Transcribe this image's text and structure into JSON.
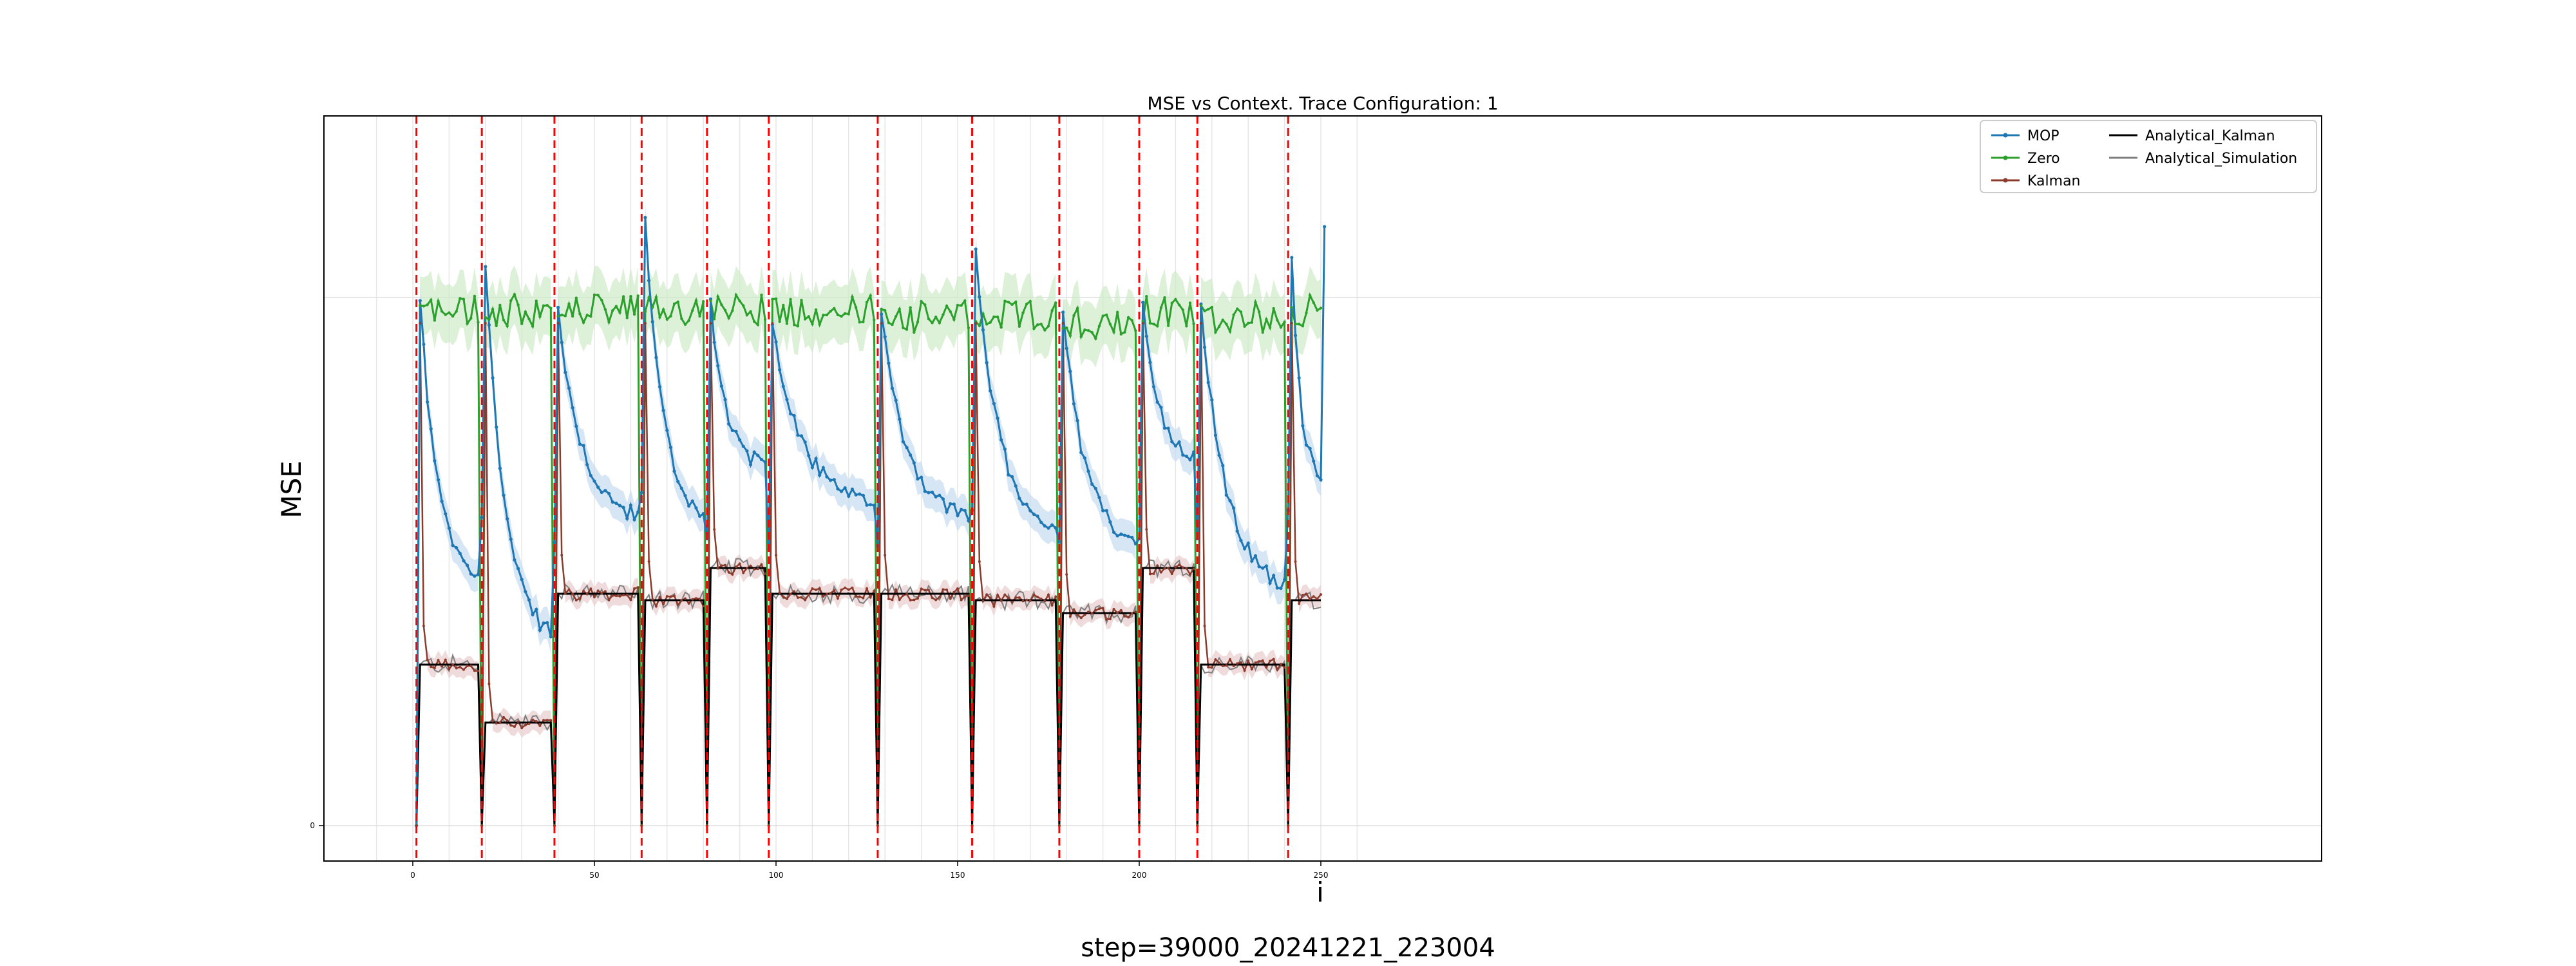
{
  "chart_data": {
    "type": "line",
    "title": "MSE vs Context. Trace Configuration: 1",
    "xlabel": "i",
    "ylabel": "MSE",
    "footer": "step=39000_20241221_223004",
    "xlim": [
      -12.5,
      262.5
    ],
    "ylim": [
      -0.05,
      1.0
    ],
    "x_ticks": [
      0,
      50,
      100,
      150,
      200,
      250
    ],
    "y_ticks": [
      0
    ],
    "grid": true,
    "legend_position": "top-right",
    "legend_columns": 2,
    "colors": {
      "MOP": "#1f77b4",
      "Zero": "#2ca02c",
      "Kalman": "#8c3a2b",
      "Analytical_Kalman": "#000000",
      "Analytical_Simulation": "#808080",
      "boundary": "#ff0000",
      "mop_band": "#c6dbef",
      "zero_band": "#cdebc8",
      "kalman_band": "#e8cccc"
    },
    "boundaries": [
      1,
      19,
      39,
      63,
      81,
      98,
      128,
      154,
      178,
      200,
      216,
      241
    ],
    "segments": [
      {
        "start": 1,
        "end": 19,
        "zero_level": 0.8,
        "kalman_level": 0.25,
        "mop_start": 0.82,
        "mop_end": 0.37
      },
      {
        "start": 19,
        "end": 39,
        "zero_level": 0.8,
        "kalman_level": 0.16,
        "mop_start": 0.87,
        "mop_end": 0.28
      },
      {
        "start": 39,
        "end": 63,
        "zero_level": 0.8,
        "kalman_level": 0.36,
        "mop_start": 0.8,
        "mop_end": 0.47
      },
      {
        "start": 63,
        "end": 81,
        "zero_level": 0.8,
        "kalman_level": 0.35,
        "mop_start": 0.94,
        "mop_end": 0.47
      },
      {
        "start": 81,
        "end": 98,
        "zero_level": 0.8,
        "kalman_level": 0.4,
        "mop_start": 0.81,
        "mop_end": 0.55
      },
      {
        "start": 98,
        "end": 128,
        "zero_level": 0.8,
        "kalman_level": 0.36,
        "mop_start": 0.78,
        "mop_end": 0.49
      },
      {
        "start": 128,
        "end": 154,
        "zero_level": 0.79,
        "kalman_level": 0.36,
        "mop_start": 0.79,
        "mop_end": 0.47
      },
      {
        "start": 154,
        "end": 178,
        "zero_level": 0.79,
        "kalman_level": 0.35,
        "mop_start": 0.89,
        "mop_end": 0.44
      },
      {
        "start": 178,
        "end": 200,
        "zero_level": 0.78,
        "kalman_level": 0.33,
        "mop_start": 0.8,
        "mop_end": 0.43
      },
      {
        "start": 200,
        "end": 216,
        "zero_level": 0.8,
        "kalman_level": 0.4,
        "mop_start": 0.81,
        "mop_end": 0.57
      },
      {
        "start": 216,
        "end": 241,
        "zero_level": 0.79,
        "kalman_level": 0.25,
        "mop_start": 0.81,
        "mop_end": 0.36
      },
      {
        "start": 241,
        "end": 251,
        "zero_level": 0.8,
        "kalman_level": 0.35,
        "mop_start": 0.89,
        "mop_end": 0.53
      }
    ],
    "series": [
      {
        "name": "MOP",
        "color": "#1f77b4",
        "marker": "dot"
      },
      {
        "name": "Zero",
        "color": "#2ca02c",
        "marker": "dot"
      },
      {
        "name": "Kalman",
        "color": "#8c3a2b",
        "marker": "dot"
      },
      {
        "name": "Analytical_Kalman",
        "color": "#000000",
        "marker": "none"
      },
      {
        "name": "Analytical_Simulation",
        "color": "#808080",
        "marker": "none"
      }
    ]
  }
}
